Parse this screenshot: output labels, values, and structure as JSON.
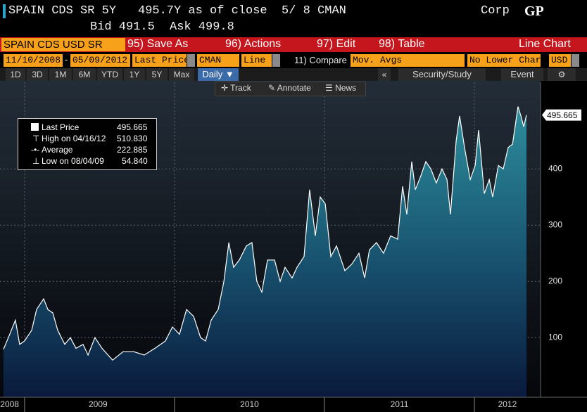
{
  "header": {
    "security": "SPAIN CDS SR 5Y",
    "quote": "495.7Y as of close  5/ 8 CMAN",
    "bid": "Bid 491.5",
    "ask": "Ask 499.8",
    "market": "Corp",
    "function": "GP"
  },
  "toolbar": {
    "ticker": "SPAIN CDS USD SR",
    "buttons": [
      "95) Save As",
      "96) Actions",
      "97) Edit",
      "98) Table"
    ],
    "chart_type": "Line Chart"
  },
  "settings": {
    "start": "11/10/2008",
    "dash": "-",
    "end": "05/09/2012",
    "field": "Last Price",
    "source": "CMAN",
    "style": "Line",
    "compare": "11) Compare",
    "studies": "Mov. Avgs",
    "lower": "No Lower Chart",
    "currency": "USD"
  },
  "periods": [
    "1D",
    "3D",
    "1M",
    "6M",
    "YTD",
    "1Y",
    "5Y",
    "Max"
  ],
  "frequency": "Daily ▼",
  "collapse": "«",
  "study": "Security/Study",
  "event": "Event",
  "chart_tools": [
    "Track",
    "Annotate",
    "News"
  ],
  "legend_box": {
    "last": "495.665",
    "high_label": "High on 04/16/12",
    "high": "510.830",
    "average_label": "Average",
    "average": "222.885",
    "low_label": "Low on 08/04/09",
    "low": "54.840"
  },
  "chart_data": {
    "type": "line",
    "x": [
      2008.859,
      2008.892,
      2008.939,
      2008.967,
      2009.0,
      2009.047,
      2009.08,
      2009.127,
      2009.155,
      2009.188,
      2009.221,
      2009.268,
      2009.305,
      2009.343,
      2009.39,
      2009.423,
      2009.469,
      2009.516,
      2009.587,
      2009.657,
      2009.728,
      2009.798,
      2009.869,
      2009.939,
      2009.986,
      2010.033,
      2010.08,
      2010.127,
      2010.174,
      2010.207,
      2010.244,
      2010.291,
      2010.329,
      2010.362,
      2010.394,
      2010.432,
      2010.479,
      2010.516,
      2010.549,
      2010.582,
      2010.62,
      2010.667,
      2010.704,
      2010.737,
      2010.784,
      2010.817,
      2010.864,
      2010.901,
      2010.939,
      2010.972,
      2011.005,
      2011.042,
      2011.08,
      2011.136,
      2011.183,
      2011.23,
      2011.268,
      2011.3,
      2011.347,
      2011.394,
      2011.441,
      2011.488,
      2011.521,
      2011.549,
      2011.582,
      2011.606,
      2011.643,
      2011.676,
      2011.709,
      2011.746,
      2011.784,
      2011.817,
      2011.84,
      2011.878,
      2011.901,
      2011.934,
      2011.972,
      2012.005,
      2012.028,
      2012.066,
      2012.099,
      2012.122,
      2012.16,
      2012.192,
      2012.225,
      2012.254,
      2012.291,
      2012.31,
      2012.329,
      2012.347
    ],
    "series": [
      {
        "name": "Last Price",
        "color": "#ffffff",
        "values": [
          79,
          100,
          131,
          88,
          94,
          113,
          150,
          169,
          150,
          144,
          113,
          88,
          100,
          81,
          88,
          69,
          100,
          81,
          60,
          75,
          75,
          69,
          81,
          94,
          119,
          106,
          150,
          138,
          100,
          94,
          131,
          150,
          200,
          269,
          225,
          238,
          263,
          269,
          200,
          181,
          238,
          238,
          200,
          225,
          206,
          225,
          244,
          363,
          281,
          350,
          338,
          244,
          263,
          219,
          231,
          250,
          206,
          256,
          269,
          250,
          281,
          275,
          369,
          319,
          413,
          363,
          388,
          413,
          400,
          375,
          400,
          381,
          319,
          450,
          494,
          438,
          381,
          406,
          469,
          356,
          381,
          350,
          406,
          400,
          438,
          444,
          510.83,
          494,
          475,
          495.665
        ]
      }
    ],
    "xlim": [
      2008.836,
      2012.441
    ],
    "xticks": [
      {
        "value": 2008.9,
        "label": "2008"
      },
      {
        "value": 2009.49,
        "label": "2009"
      },
      {
        "value": 2010.5,
        "label": "2010"
      },
      {
        "value": 2011.5,
        "label": "2011"
      },
      {
        "value": 2012.22,
        "label": "2012"
      }
    ],
    "x_separators": [
      2009,
      2010,
      2011,
      2012
    ],
    "ylim": [
      -6,
      554
    ],
    "yticks": [
      100,
      200,
      300,
      400
    ],
    "grid": true,
    "fill": true
  }
}
